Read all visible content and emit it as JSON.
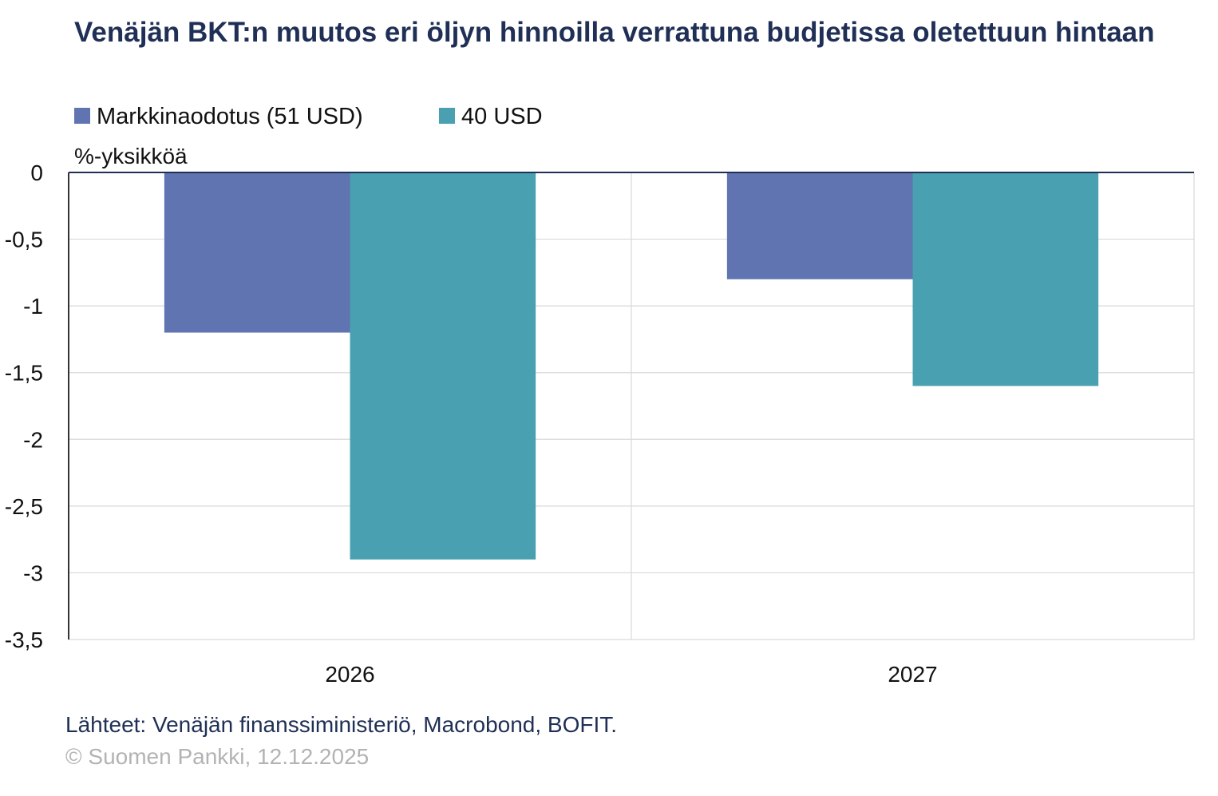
{
  "chart_data": {
    "type": "bar",
    "title": "Venäjän BKT:n muutos eri öljyn hinnoilla verrattuna budjetissa oletettuun hintaan",
    "ylabel": "%-yksikköä",
    "xlabel": "",
    "categories": [
      "2026",
      "2027"
    ],
    "series": [
      {
        "name": "Markkinaodotus (51 USD)",
        "color": "#5f74b0",
        "values": [
          -1.2,
          -0.8
        ]
      },
      {
        "name": "40 USD",
        "color": "#49a0b0",
        "values": [
          -2.9,
          -1.6
        ]
      }
    ],
    "ylim": [
      -3.5,
      0
    ],
    "yticks": [
      0,
      -0.5,
      -1,
      -1.5,
      -2,
      -2.5,
      -3,
      -3.5
    ],
    "ytick_labels": [
      "0",
      "-0,5",
      "-1",
      "-1,5",
      "-2",
      "-2,5",
      "-3",
      "-3,5"
    ],
    "grid": true,
    "legend_position": "top-left"
  },
  "footer": {
    "source": "Lähteet: Venäjän finanssiministeriö, Macrobond, BOFIT.",
    "copyright": "© Suomen Pankki, 12.12.2025"
  }
}
